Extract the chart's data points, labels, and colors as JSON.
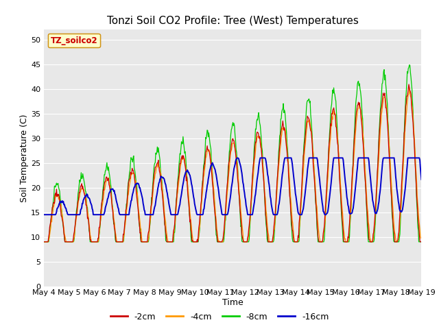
{
  "title": "Tonzi Soil CO2 Profile: Tree (West) Temperatures",
  "xlabel": "Time",
  "ylabel": "Soil Temperature (C)",
  "ylim": [
    0,
    52
  ],
  "yticks": [
    0,
    5,
    10,
    15,
    20,
    25,
    30,
    35,
    40,
    45,
    50
  ],
  "legend_label": "TZ_soilco2",
  "series_labels": [
    "-2cm",
    "-4cm",
    "-8cm",
    "-16cm"
  ],
  "series_colors": [
    "#cc0000",
    "#ff9900",
    "#00cc00",
    "#0000cc"
  ],
  "fig_bg_color": "#ffffff",
  "plot_bg_color": "#e8e8e8",
  "grid_color": "#ffffff",
  "x_tick_labels": [
    "May 4",
    "May 5",
    "May 6",
    "May 7",
    "May 8",
    "May 9",
    "May 10",
    "May 11",
    "May 12",
    "May 13",
    "May 14",
    "May 15",
    "May 16",
    "May 17",
    "May 18",
    "May 19"
  ]
}
